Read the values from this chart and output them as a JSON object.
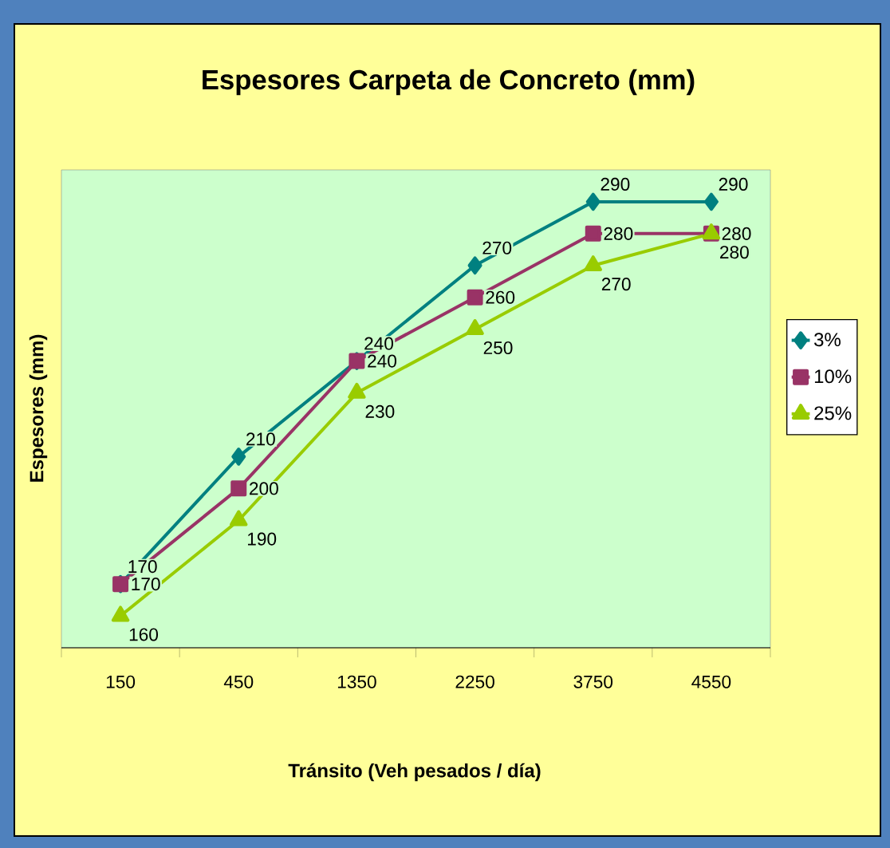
{
  "chart_data": {
    "type": "line",
    "title": "Espesores Carpeta de Concreto (mm)",
    "xlabel": "Tránsito (Veh pesados / día)",
    "ylabel": "Espesores (mm)",
    "categories": [
      "150",
      "450",
      "1350",
      "2250",
      "3750",
      "4550"
    ],
    "ylim": [
      150,
      300
    ],
    "tick_labels": "x",
    "legend": "right",
    "data_labels": true,
    "series": [
      {
        "name": "3%",
        "color": "#008080",
        "marker": "diamond",
        "values": [
          170,
          210,
          240,
          270,
          290,
          290
        ]
      },
      {
        "name": "10%",
        "color": "#993366",
        "marker": "square",
        "values": [
          170,
          200,
          240,
          260,
          280,
          280
        ]
      },
      {
        "name": "25%",
        "color": "#99cc00",
        "marker": "triangle",
        "values": [
          160,
          190,
          230,
          250,
          270,
          280
        ]
      }
    ]
  }
}
